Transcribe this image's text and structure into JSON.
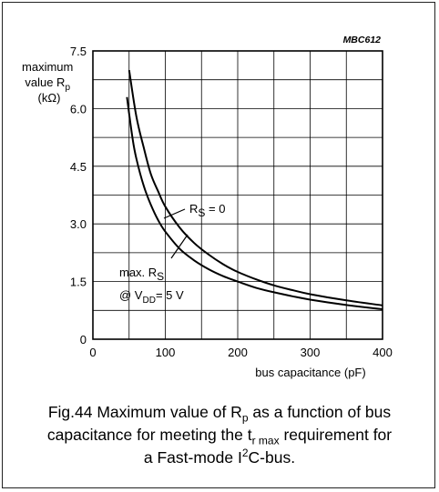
{
  "chart_data": {
    "type": "line",
    "figure_code": "MBC612",
    "ylabel": {
      "line1": "maximum",
      "line2_prefix": "value R",
      "line2_sub": "p",
      "line3": "(kΩ)"
    },
    "xlabel": "bus capacitance (pF)",
    "xlim": [
      0,
      400
    ],
    "ylim": [
      0,
      7.5
    ],
    "x_ticks": [
      0,
      100,
      200,
      300,
      400
    ],
    "y_ticks": [
      "0",
      "1.5",
      "3.0",
      "4.5",
      "6.0",
      "7.5"
    ],
    "x_grid_step": 50,
    "y_grid_step": 0.75,
    "grid": true,
    "series": [
      {
        "label_id": "rs0",
        "x": [
          50,
          60,
          70,
          80,
          90,
          100,
          120,
          140,
          160,
          180,
          200,
          225,
          250,
          275,
          300,
          350,
          400
        ],
        "y": [
          7.0,
          5.8,
          5.0,
          4.3,
          3.85,
          3.45,
          2.9,
          2.5,
          2.2,
          1.95,
          1.75,
          1.56,
          1.4,
          1.28,
          1.17,
          1.01,
          0.88
        ]
      },
      {
        "label_id": "rs_max",
        "x": [
          47,
          55,
          60,
          70,
          80,
          90,
          100,
          120,
          140,
          160,
          180,
          200,
          225,
          250,
          275,
          300,
          350,
          400
        ],
        "y": [
          6.3,
          5.2,
          4.7,
          4.0,
          3.5,
          3.1,
          2.8,
          2.35,
          2.05,
          1.82,
          1.64,
          1.5,
          1.34,
          1.22,
          1.12,
          1.03,
          0.89,
          0.78
        ]
      }
    ],
    "annotations": {
      "rs0": {
        "prefix": "R",
        "sub": "S",
        "suffix": " = 0"
      },
      "rs_max": {
        "line1_prefix": "max. R",
        "line1_sub": "S",
        "line2_prefix": "@ V",
        "line2_sub": "DD",
        "line2_suffix": "= 5 V"
      }
    }
  },
  "caption": {
    "line1_a": "Fig.44  Maximum value of R",
    "line1_sub": "p",
    "line1_b": " as a function of bus",
    "line2_a": "capacitance for meeting the t",
    "line2_sub": "r max",
    "line2_b": " requirement for",
    "line3_a": "a Fast-mode I",
    "line3_sup": "2",
    "line3_b": "C-bus."
  },
  "colors": {
    "curve": "#000000",
    "grid": "#000000",
    "frame": "#222222"
  }
}
